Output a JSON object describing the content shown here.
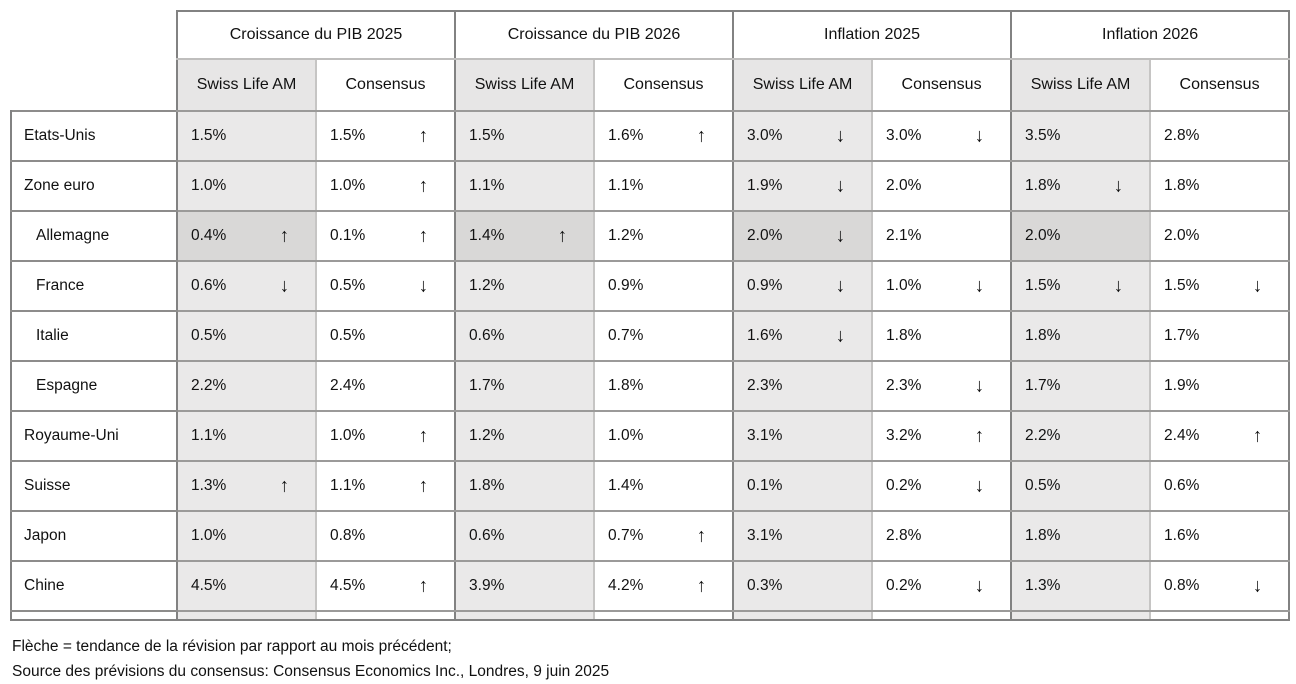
{
  "header": {
    "groups": [
      "Croissance du PIB 2025",
      "Croissance du PIB 2026",
      "Inflation 2025",
      "Inflation 2026"
    ],
    "sub": {
      "swiss": "Swiss Life AM",
      "consensus": "Consensus"
    }
  },
  "rows": [
    {
      "label": "Etats-Unis",
      "indent": false,
      "highlight": false,
      "cells": [
        {
          "v": "1.5%",
          "arrow": ""
        },
        {
          "v": "1.5%",
          "arrow": "↑"
        },
        {
          "v": "1.5%",
          "arrow": ""
        },
        {
          "v": "1.6%",
          "arrow": "↑"
        },
        {
          "v": "3.0%",
          "arrow": "↓"
        },
        {
          "v": "3.0%",
          "arrow": "↓"
        },
        {
          "v": "3.5%",
          "arrow": ""
        },
        {
          "v": "2.8%",
          "arrow": ""
        }
      ]
    },
    {
      "label": "Zone euro",
      "indent": false,
      "highlight": false,
      "cells": [
        {
          "v": "1.0%",
          "arrow": ""
        },
        {
          "v": "1.0%",
          "arrow": "↑"
        },
        {
          "v": "1.1%",
          "arrow": ""
        },
        {
          "v": "1.1%",
          "arrow": ""
        },
        {
          "v": "1.9%",
          "arrow": "↓"
        },
        {
          "v": "2.0%",
          "arrow": ""
        },
        {
          "v": "1.8%",
          "arrow": "↓"
        },
        {
          "v": "1.8%",
          "arrow": ""
        }
      ]
    },
    {
      "label": "Allemagne",
      "indent": true,
      "highlight": true,
      "cells": [
        {
          "v": "0.4%",
          "arrow": "↑"
        },
        {
          "v": "0.1%",
          "arrow": "↑"
        },
        {
          "v": "1.4%",
          "arrow": "↑"
        },
        {
          "v": "1.2%",
          "arrow": ""
        },
        {
          "v": "2.0%",
          "arrow": "↓"
        },
        {
          "v": "2.1%",
          "arrow": ""
        },
        {
          "v": "2.0%",
          "arrow": ""
        },
        {
          "v": "2.0%",
          "arrow": ""
        }
      ]
    },
    {
      "label": "France",
      "indent": true,
      "highlight": false,
      "cells": [
        {
          "v": "0.6%",
          "arrow": "↓"
        },
        {
          "v": "0.5%",
          "arrow": "↓"
        },
        {
          "v": "1.2%",
          "arrow": ""
        },
        {
          "v": "0.9%",
          "arrow": ""
        },
        {
          "v": "0.9%",
          "arrow": "↓"
        },
        {
          "v": "1.0%",
          "arrow": "↓"
        },
        {
          "v": "1.5%",
          "arrow": "↓"
        },
        {
          "v": "1.5%",
          "arrow": "↓"
        }
      ]
    },
    {
      "label": "Italie",
      "indent": true,
      "highlight": false,
      "cells": [
        {
          "v": "0.5%",
          "arrow": ""
        },
        {
          "v": "0.5%",
          "arrow": ""
        },
        {
          "v": "0.6%",
          "arrow": ""
        },
        {
          "v": "0.7%",
          "arrow": ""
        },
        {
          "v": "1.6%",
          "arrow": "↓"
        },
        {
          "v": "1.8%",
          "arrow": ""
        },
        {
          "v": "1.8%",
          "arrow": ""
        },
        {
          "v": "1.7%",
          "arrow": ""
        }
      ]
    },
    {
      "label": "Espagne",
      "indent": true,
      "highlight": false,
      "cells": [
        {
          "v": "2.2%",
          "arrow": ""
        },
        {
          "v": "2.4%",
          "arrow": ""
        },
        {
          "v": "1.7%",
          "arrow": ""
        },
        {
          "v": "1.8%",
          "arrow": ""
        },
        {
          "v": "2.3%",
          "arrow": ""
        },
        {
          "v": "2.3%",
          "arrow": "↓"
        },
        {
          "v": "1.7%",
          "arrow": ""
        },
        {
          "v": "1.9%",
          "arrow": ""
        }
      ]
    },
    {
      "label": "Royaume-Uni",
      "indent": false,
      "highlight": false,
      "cells": [
        {
          "v": "1.1%",
          "arrow": ""
        },
        {
          "v": "1.0%",
          "arrow": "↑"
        },
        {
          "v": "1.2%",
          "arrow": ""
        },
        {
          "v": "1.0%",
          "arrow": ""
        },
        {
          "v": "3.1%",
          "arrow": ""
        },
        {
          "v": "3.2%",
          "arrow": "↑"
        },
        {
          "v": "2.2%",
          "arrow": ""
        },
        {
          "v": "2.4%",
          "arrow": "↑"
        }
      ]
    },
    {
      "label": "Suisse",
      "indent": false,
      "highlight": false,
      "cells": [
        {
          "v": "1.3%",
          "arrow": "↑"
        },
        {
          "v": "1.1%",
          "arrow": "↑"
        },
        {
          "v": "1.8%",
          "arrow": ""
        },
        {
          "v": "1.4%",
          "arrow": ""
        },
        {
          "v": "0.1%",
          "arrow": ""
        },
        {
          "v": "0.2%",
          "arrow": "↓"
        },
        {
          "v": "0.5%",
          "arrow": ""
        },
        {
          "v": "0.6%",
          "arrow": ""
        }
      ]
    },
    {
      "label": "Japon",
      "indent": false,
      "highlight": false,
      "cells": [
        {
          "v": "1.0%",
          "arrow": ""
        },
        {
          "v": "0.8%",
          "arrow": ""
        },
        {
          "v": "0.6%",
          "arrow": ""
        },
        {
          "v": "0.7%",
          "arrow": "↑"
        },
        {
          "v": "3.1%",
          "arrow": ""
        },
        {
          "v": "2.8%",
          "arrow": ""
        },
        {
          "v": "1.8%",
          "arrow": ""
        },
        {
          "v": "1.6%",
          "arrow": ""
        }
      ]
    },
    {
      "label": "Chine",
      "indent": false,
      "highlight": false,
      "cells": [
        {
          "v": "4.5%",
          "arrow": ""
        },
        {
          "v": "4.5%",
          "arrow": "↑"
        },
        {
          "v": "3.9%",
          "arrow": ""
        },
        {
          "v": "4.2%",
          "arrow": "↑"
        },
        {
          "v": "0.3%",
          "arrow": ""
        },
        {
          "v": "0.2%",
          "arrow": "↓"
        },
        {
          "v": "1.3%",
          "arrow": ""
        },
        {
          "v": "0.8%",
          "arrow": "↓"
        }
      ]
    }
  ],
  "footnotes": {
    "line1": "Flèche = tendance de la révision par rapport au mois précédent;",
    "line2": "Source des prévisions du consensus: Consensus Economics Inc., Londres, 9 juin 2025"
  },
  "colors": {
    "swiss_column_bg": "#eae9e9",
    "highlight_row_bg": "#d9d8d7",
    "subheader_bg": "#e7e6e6",
    "border_dark": "#828282",
    "border_light": "#c6c5c4"
  }
}
